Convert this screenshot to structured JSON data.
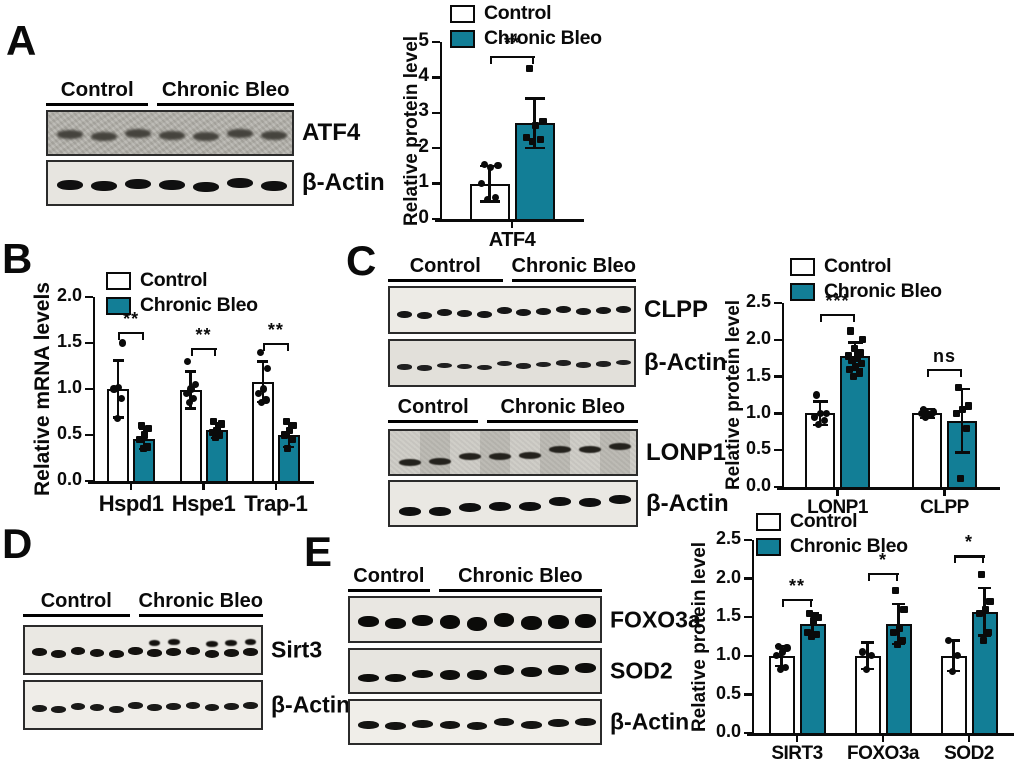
{
  "panels": {
    "A": {
      "label": "A"
    },
    "B": {
      "label": "B"
    },
    "C": {
      "label": "C"
    },
    "D": {
      "label": "D"
    },
    "E": {
      "label": "E"
    }
  },
  "group_labels": {
    "control": "Control",
    "treated": "Chronic Bleo"
  },
  "colors": {
    "control_fill": "#ffffff",
    "bleo_fill": "#127e96",
    "outline": "#0a0a0a"
  },
  "blots": {
    "A": {
      "groups": [
        {
          "label": "Control",
          "lanes": 3
        },
        {
          "label": "Chronic Bleo",
          "lanes": 4
        }
      ],
      "rows": [
        {
          "label": "ATF4",
          "lanes": 7
        },
        {
          "label": "β-Actin",
          "lanes": 7
        }
      ]
    },
    "C_top": {
      "groups": [
        {
          "label": "Control",
          "lanes": 6
        },
        {
          "label": "Chronic Bleo",
          "lanes": 6
        }
      ],
      "rows": [
        {
          "label": "CLPP",
          "lanes": 12
        },
        {
          "label": "β-Actin",
          "lanes": 12
        }
      ]
    },
    "C_bottom": {
      "groups": [
        {
          "label": "Control",
          "lanes": 3
        },
        {
          "label": "Chronic Bleo",
          "lanes": 5
        }
      ],
      "rows": [
        {
          "label": "LONP1",
          "lanes": 8
        },
        {
          "label": "β-Actin",
          "lanes": 8
        }
      ]
    },
    "D": {
      "groups": [
        {
          "label": "Control",
          "lanes": 6
        },
        {
          "label": "Chronic Bleo",
          "lanes": 6
        }
      ],
      "rows": [
        {
          "label": "Sirt3",
          "lanes": 12
        },
        {
          "label": "β-Actin",
          "lanes": 12
        }
      ]
    },
    "E": {
      "groups": [
        {
          "label": "Control",
          "lanes": 3
        },
        {
          "label": "Chronic Bleo",
          "lanes": 6
        }
      ],
      "rows": [
        {
          "label": "FOXO3a",
          "lanes": 9
        },
        {
          "label": "SOD2",
          "lanes": 9
        },
        {
          "label": "β-Actin",
          "lanes": 9
        }
      ]
    }
  },
  "chart_data": [
    {
      "id": "A",
      "type": "bar",
      "title": "",
      "ylabel": "Relative protein level",
      "xlabel": "",
      "ylim": [
        0,
        5
      ],
      "yticks": [
        0,
        1,
        2,
        3,
        4,
        5
      ],
      "ytick_labels": [
        "0",
        "1",
        "2",
        "3",
        "4",
        "5"
      ],
      "categories": [
        "ATF4"
      ],
      "legend_position": "top",
      "series": [
        {
          "name": "Control",
          "fill": "#ffffff",
          "marker": "circle",
          "values": [
            1.0
          ],
          "errors": [
            0.5
          ],
          "points": [
            [
              0.55,
              0.6,
              1.0,
              1.45,
              1.5,
              1.55
            ]
          ]
        },
        {
          "name": "Chronic Bleo",
          "fill": "#127e96",
          "marker": "square",
          "values": [
            2.7
          ],
          "errors": [
            0.7
          ],
          "points": [
            [
              2.2,
              2.25,
              2.3,
              2.65,
              2.75,
              4.25
            ]
          ]
        }
      ],
      "significance": [
        {
          "category": "ATF4",
          "label": "**",
          "y": 4.6
        }
      ]
    },
    {
      "id": "B",
      "type": "bar",
      "title": "",
      "ylabel": "Relative mRNA levels",
      "xlabel": "",
      "ylim": [
        0,
        2
      ],
      "yticks": [
        0,
        0.5,
        1.0,
        1.5,
        2.0
      ],
      "ytick_labels": [
        "0.0",
        "0.5",
        "1.0",
        "1.5",
        "2.0"
      ],
      "categories": [
        "Hspd1",
        "Hspe1",
        "Trap-1"
      ],
      "legend_position": "top",
      "series": [
        {
          "name": "Control",
          "fill": "#ffffff",
          "marker": "circle",
          "values": [
            1.0,
            0.99,
            1.08
          ],
          "errors": [
            0.31,
            0.2,
            0.22
          ],
          "points": [
            [
              0.68,
              0.9,
              1.0,
              1.02,
              1.5
            ],
            [
              0.85,
              0.9,
              0.95,
              1.0,
              1.05,
              1.3
            ],
            [
              0.85,
              0.88,
              0.95,
              1.0,
              1.22,
              1.4
            ]
          ]
        },
        {
          "name": "Chronic Bleo",
          "fill": "#127e96",
          "marker": "square",
          "values": [
            0.46,
            0.55,
            0.5
          ],
          "errors": [
            0.11,
            0.08,
            0.13
          ],
          "points": [
            [
              0.35,
              0.37,
              0.45,
              0.5,
              0.57,
              0.6
            ],
            [
              0.47,
              0.5,
              0.53,
              0.55,
              0.62,
              0.65
            ],
            [
              0.35,
              0.45,
              0.5,
              0.55,
              0.6,
              0.65
            ]
          ]
        }
      ],
      "significance": [
        {
          "category": "Hspd1",
          "label": "**",
          "y": 1.62
        },
        {
          "category": "Hspe1",
          "label": "**",
          "y": 1.45
        },
        {
          "category": "Trap-1",
          "label": "**",
          "y": 1.5
        }
      ]
    },
    {
      "id": "C",
      "type": "bar",
      "title": "",
      "ylabel": "Relative protein level",
      "xlabel": "",
      "ylim": [
        0,
        2.5
      ],
      "yticks": [
        0,
        0.5,
        1.0,
        1.5,
        2.0,
        2.5
      ],
      "ytick_labels": [
        "0.0",
        "0.5",
        "1.0",
        "1.5",
        "2.0",
        "2.5"
      ],
      "categories": [
        "LONP1",
        "CLPP"
      ],
      "legend_position": "top",
      "series": [
        {
          "name": "Control",
          "fill": "#ffffff",
          "marker": "circle",
          "values": [
            1.0,
            1.0
          ],
          "errors": [
            0.16,
            0.06
          ],
          "points": [
            [
              0.85,
              0.9,
              0.95,
              1.0,
              1.0,
              1.25
            ],
            [
              0.95,
              0.98,
              1.0,
              1.0,
              1.02,
              1.05
            ]
          ]
        },
        {
          "name": "Chronic Bleo",
          "fill": "#127e96",
          "marker": "square",
          "values": [
            1.78,
            0.9
          ],
          "errors": [
            0.18,
            0.43
          ],
          "points": [
            [
              1.5,
              1.55,
              1.6,
              1.63,
              1.68,
              1.72,
              1.75,
              1.78,
              1.82,
              1.88,
              2.0,
              2.12
            ],
            [
              0.12,
              0.8,
              1.0,
              1.05,
              1.1,
              1.35
            ]
          ]
        }
      ],
      "significance": [
        {
          "category": "LONP1",
          "label": "***",
          "y": 2.35
        },
        {
          "category": "CLPP",
          "label": "ns",
          "y": 1.6
        }
      ]
    },
    {
      "id": "E",
      "type": "bar",
      "title": "",
      "ylabel": "Relative protein level",
      "xlabel": "",
      "ylim": [
        0,
        2.5
      ],
      "yticks": [
        0,
        0.5,
        1.0,
        1.5,
        2.0,
        2.5
      ],
      "ytick_labels": [
        "0.0",
        "0.5",
        "1.0",
        "1.5",
        "2.0",
        "2.5"
      ],
      "categories": [
        "SIRT3",
        "FOXO3a",
        "SOD2"
      ],
      "legend_position": "top",
      "series": [
        {
          "name": "Control",
          "fill": "#ffffff",
          "marker": "circle",
          "values": [
            1.0,
            1.0,
            1.0
          ],
          "errors": [
            0.13,
            0.17,
            0.2
          ],
          "points": [
            [
              0.82,
              0.85,
              1.0,
              1.05,
              1.1,
              1.12
            ],
            [
              0.82,
              1.0,
              1.05
            ],
            [
              0.8,
              1.0,
              1.2
            ]
          ]
        },
        {
          "name": "Chronic Bleo",
          "fill": "#127e96",
          "marker": "square",
          "values": [
            1.41,
            1.41,
            1.57
          ],
          "errors": [
            0.14,
            0.26,
            0.31
          ],
          "points": [
            [
              1.25,
              1.28,
              1.3,
              1.45,
              1.5,
              1.55
            ],
            [
              1.15,
              1.2,
              1.3,
              1.35,
              1.6,
              1.85
            ],
            [
              1.2,
              1.3,
              1.55,
              1.6,
              1.7,
              2.05
            ]
          ]
        }
      ],
      "significance": [
        {
          "category": "SIRT3",
          "label": "**",
          "y": 1.74
        },
        {
          "category": "FOXO3a",
          "label": "*",
          "y": 2.07
        },
        {
          "category": "SOD2",
          "label": "*",
          "y": 2.3
        }
      ]
    }
  ]
}
